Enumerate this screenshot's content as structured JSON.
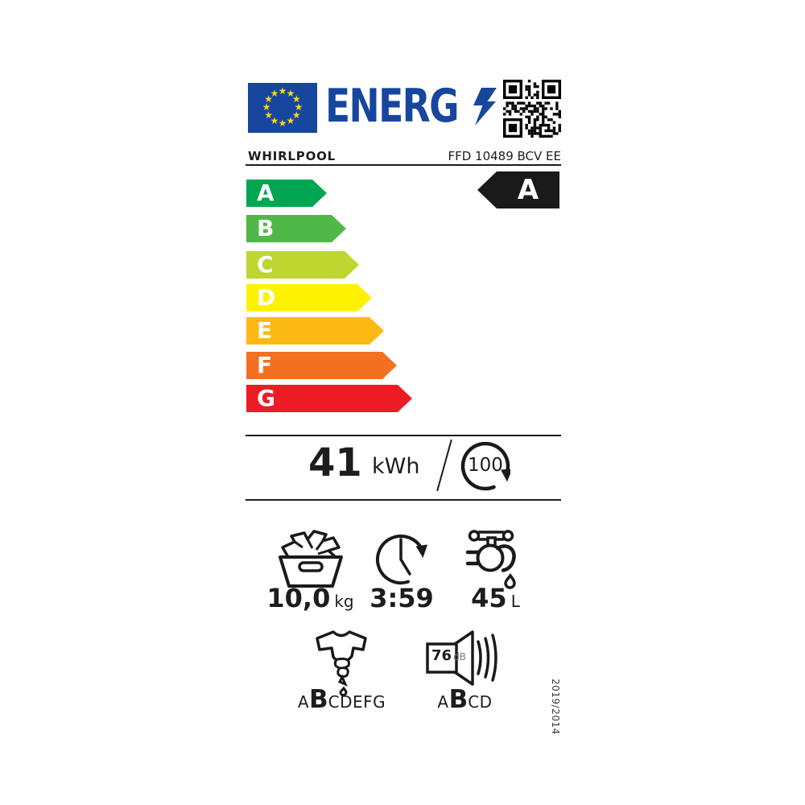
{
  "header": {
    "logo_text": "ENERG",
    "brand": "WHIRLPOOL",
    "model": "FFD 10489 BCV EE"
  },
  "rating": {
    "selected_class": "A",
    "scale": [
      {
        "label": "A",
        "color": "#00a651"
      },
      {
        "label": "B",
        "color": "#50b848"
      },
      {
        "label": "C",
        "color": "#bed630"
      },
      {
        "label": "D",
        "color": "#fff200"
      },
      {
        "label": "E",
        "color": "#fdb913"
      },
      {
        "label": "F",
        "color": "#f37021"
      },
      {
        "label": "G",
        "color": "#ed1c24"
      }
    ]
  },
  "energy": {
    "value": "41",
    "unit": "kWh",
    "cycles": "100"
  },
  "metrics": {
    "capacity": {
      "value": "10,0",
      "unit": "kg"
    },
    "duration": {
      "value": "3:59",
      "unit": ""
    },
    "water": {
      "value": "45",
      "unit": "L"
    }
  },
  "spin_class": {
    "prefix": "A",
    "current": "B",
    "suffix": "CDEFG"
  },
  "noise": {
    "value": "76",
    "unit": "dB",
    "prefix": "A",
    "current": "B",
    "suffix": "CD"
  },
  "regulation": "2019/2014",
  "colors": {
    "eu_blue": "#17469e",
    "eu_yellow": "#ffd617",
    "label_black": "#1a1a1a"
  },
  "icons": {
    "logo_bolt": "lightning-bolt-icon",
    "qr": "qr-code",
    "cycles": "circular-arrow-icon",
    "capacity": "laundry-basket-icon",
    "duration": "clock-icon",
    "water": "tap-icon",
    "spin": "wrung-shirt-icon",
    "noise": "speaker-icon"
  }
}
